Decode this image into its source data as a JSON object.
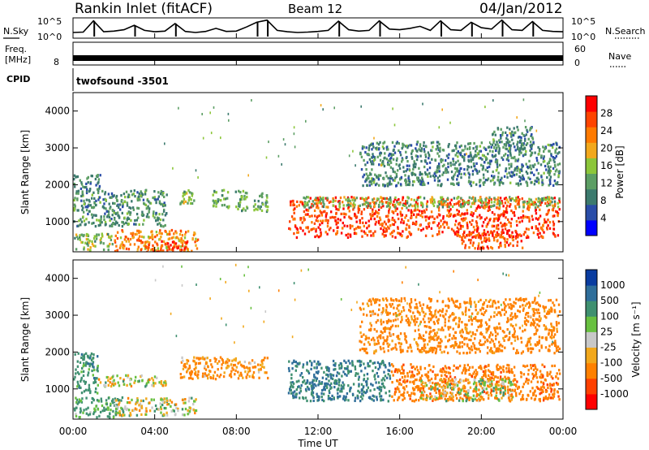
{
  "header": {
    "station": "Rankin Inlet (fitACF)",
    "beam": "Beam 12",
    "date": "04/Jan/2012"
  },
  "top_panels": {
    "nsky_label": "N.Sky",
    "nsearch_label": "N.Search",
    "nsky_ticks": [
      "10^5",
      "10^0"
    ],
    "freq_label_1": "Freq.",
    "freq_label_2": "[MHz]",
    "freq_tick": "8",
    "nave_label": "Nave",
    "nave_ticks": [
      "60",
      "0"
    ],
    "cpid_label": "CPID",
    "cpid_value": "twofsound -3501"
  },
  "colors": {
    "power": [
      "#0000ff",
      "#2a4da8",
      "#3c7a6e",
      "#5c9e64",
      "#8cc63a",
      "#f2a81c",
      "#ff7a00",
      "#ff4400",
      "#ff0000"
    ],
    "velocity": [
      "#0a3ca0",
      "#2f6e9a",
      "#3f9070",
      "#68c040",
      "#c8c8c8",
      "#f2a81c",
      "#ff8000",
      "#ff4000",
      "#ff0000"
    ]
  },
  "chart_data": [
    {
      "type": "line",
      "title": "N.Sky / N.Search",
      "x_unit": "hours UT",
      "xlim": [
        0,
        24
      ],
      "ylim": [
        0,
        5
      ],
      "y_scale": "log10",
      "series": [
        {
          "name": "N.Sky",
          "x": [
            0,
            0.5,
            1,
            1.5,
            2,
            2.5,
            3,
            3.5,
            4,
            4.5,
            5,
            5.5,
            6,
            6.5,
            7,
            7.5,
            8,
            8.5,
            9,
            9.5,
            10,
            10.5,
            11,
            11.5,
            12,
            12.5,
            13,
            13.5,
            14,
            14.5,
            15,
            15.5,
            16,
            16.5,
            17,
            17.5,
            18,
            18.5,
            19,
            19.5,
            20,
            20.5,
            21,
            21.5,
            22,
            22.5,
            23,
            23.5,
            24
          ],
          "values": [
            1.2,
            1.3,
            4.6,
            1.4,
            1.6,
            2.0,
            3.3,
            1.8,
            1.4,
            1.6,
            3.8,
            1.5,
            1.2,
            1.5,
            2.4,
            1.5,
            1.6,
            2.8,
            4.2,
            4.8,
            1.8,
            1.4,
            1.2,
            1.3,
            1.5,
            1.8,
            4.5,
            2.0,
            1.6,
            1.8,
            4.6,
            2.2,
            2.0,
            2.4,
            3.0,
            1.8,
            4.6,
            2.0,
            1.8,
            4.2,
            2.6,
            2.2,
            4.8,
            2.0,
            1.8,
            4.4,
            1.8,
            1.5,
            1.4
          ]
        }
      ]
    },
    {
      "type": "line",
      "title": "Freq. / Nave",
      "x_unit": "hours UT",
      "xlim": [
        0,
        24
      ],
      "ylim": [
        0,
        60
      ],
      "series": [
        {
          "name": "Freq.",
          "x": [
            0,
            24
          ],
          "values": [
            10.4,
            10.4
          ]
        },
        {
          "name": "Nave",
          "x": [
            0,
            24
          ],
          "values": [
            30,
            30
          ]
        }
      ]
    },
    {
      "type": "heatmap",
      "panel": "power",
      "x_label": "Time UT",
      "x_unit": "hours UT",
      "ylabel": "Slant Range [km]",
      "colorbar_label": "Power [dB]",
      "colorbar_ticks": [
        "28",
        "24",
        "20",
        "16",
        "12",
        "8",
        "4"
      ],
      "xlim": [
        0,
        24
      ],
      "ylim": [
        180,
        4500
      ],
      "y_ticks": [
        "4000",
        "3000",
        "2000",
        "1000"
      ],
      "x_ticks": [
        "00:00",
        "04:00",
        "08:00",
        "12:00",
        "16:00",
        "20:00",
        "00:00"
      ],
      "regions": [
        {
          "t0": 0.0,
          "t1": 4.6,
          "r0": 900,
          "r1": 1900,
          "value": 10
        },
        {
          "t0": 0.0,
          "t1": 1.3,
          "r0": 1900,
          "r1": 2300,
          "value": 8
        },
        {
          "t0": 0.0,
          "t1": 2.0,
          "r0": 250,
          "r1": 700,
          "value": 14
        },
        {
          "t0": 2.0,
          "t1": 6.1,
          "r0": 200,
          "r1": 800,
          "value": 20
        },
        {
          "t0": 3.5,
          "t1": 5.6,
          "r0": 200,
          "r1": 500,
          "value": 26
        },
        {
          "t0": 5.2,
          "t1": 5.9,
          "r0": 1500,
          "r1": 1900,
          "value": 14
        },
        {
          "t0": 6.8,
          "t1": 7.6,
          "r0": 1400,
          "r1": 1900,
          "value": 12
        },
        {
          "t0": 7.9,
          "t1": 8.5,
          "r0": 1300,
          "r1": 1900,
          "value": 12
        },
        {
          "t0": 8.8,
          "t1": 9.5,
          "r0": 1300,
          "r1": 1800,
          "value": 12
        },
        {
          "t0": 10.5,
          "t1": 23.8,
          "r0": 600,
          "r1": 1700,
          "value": 25
        },
        {
          "t0": 11.2,
          "t1": 23.8,
          "r0": 1400,
          "r1": 1700,
          "value": 14
        },
        {
          "t0": 19.0,
          "t1": 22.0,
          "r0": 300,
          "r1": 700,
          "value": 24
        },
        {
          "t0": 14.0,
          "t1": 23.8,
          "r0": 2000,
          "r1": 3200,
          "value": 9
        },
        {
          "t0": 20.5,
          "t1": 22.5,
          "r0": 3000,
          "r1": 3600,
          "value": 9
        }
      ]
    },
    {
      "type": "heatmap",
      "panel": "velocity",
      "x_label": "Time UT",
      "x_unit": "hours UT",
      "ylabel": "Slant Range [km]",
      "colorbar_label": "Velocity [m s⁻¹]",
      "colorbar_ticks": [
        "1000",
        "500",
        "100",
        "25",
        "-25",
        "-100",
        "-500",
        "-1000"
      ],
      "xlim": [
        0,
        24
      ],
      "ylim": [
        180,
        4500
      ],
      "y_ticks": [
        "4000",
        "3000",
        "2000",
        "1000"
      ],
      "x_ticks": [
        "00:00",
        "04:00",
        "08:00",
        "12:00",
        "16:00",
        "20:00",
        "00:00"
      ],
      "regions": [
        {
          "t0": 0.0,
          "t1": 1.2,
          "r0": 900,
          "r1": 2000,
          "value": 200
        },
        {
          "t0": 1.0,
          "t1": 4.6,
          "r0": 1100,
          "r1": 1400,
          "value": 0
        },
        {
          "t0": 0.0,
          "t1": 2.5,
          "r0": 250,
          "r1": 800,
          "value": 150
        },
        {
          "t0": 2.0,
          "t1": 6.0,
          "r0": 300,
          "r1": 800,
          "value": 0
        },
        {
          "t0": 5.2,
          "t1": 9.5,
          "r0": 1300,
          "r1": 1900,
          "value": -150
        },
        {
          "t0": 10.5,
          "t1": 15.5,
          "r0": 700,
          "r1": 1800,
          "value": 300
        },
        {
          "t0": 15.5,
          "t1": 23.8,
          "r0": 700,
          "r1": 1700,
          "value": -300
        },
        {
          "t0": 17.0,
          "t1": 21.5,
          "r0": 700,
          "r1": 1300,
          "value": 0
        },
        {
          "t0": 14.0,
          "t1": 23.8,
          "r0": 2000,
          "r1": 3500,
          "value": -200
        }
      ]
    }
  ]
}
